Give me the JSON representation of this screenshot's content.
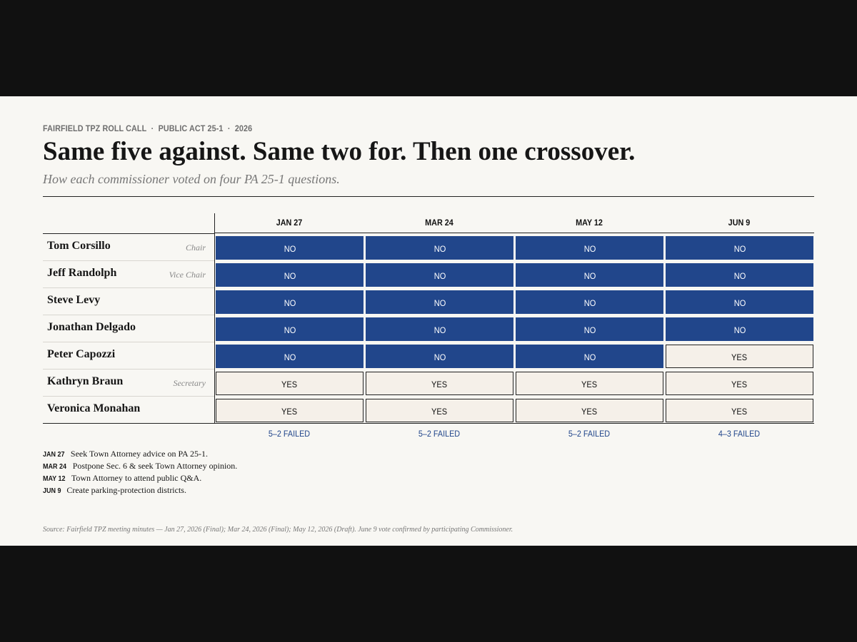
{
  "kicker": [
    "FAIRFIELD TPZ ROLL CALL",
    "PUBLIC ACT 25-1",
    "2026"
  ],
  "kicker_sep": "·",
  "title": "Same five against. Same two for. Then one crossover.",
  "subtitle": "How each commissioner voted on four PA 25-1 questions.",
  "columns": [
    "JAN 27",
    "MAR 24",
    "MAY 12",
    "JUN 9"
  ],
  "rows": [
    {
      "name": "Tom Corsillo",
      "role": "Chair",
      "votes": [
        "NO",
        "NO",
        "NO",
        "NO"
      ]
    },
    {
      "name": "Jeff Randolph",
      "role": "Vice Chair",
      "votes": [
        "NO",
        "NO",
        "NO",
        "NO"
      ]
    },
    {
      "name": "Steve Levy",
      "role": "",
      "votes": [
        "NO",
        "NO",
        "NO",
        "NO"
      ]
    },
    {
      "name": "Jonathan Delgado",
      "role": "",
      "votes": [
        "NO",
        "NO",
        "NO",
        "NO"
      ]
    },
    {
      "name": "Peter Capozzi",
      "role": "",
      "votes": [
        "NO",
        "NO",
        "NO",
        "YES"
      ]
    },
    {
      "name": "Kathryn Braun",
      "role": "Secretary",
      "votes": [
        "YES",
        "YES",
        "YES",
        "YES"
      ]
    },
    {
      "name": "Veronica Monahan",
      "role": "",
      "votes": [
        "YES",
        "YES",
        "YES",
        "YES"
      ]
    }
  ],
  "results": [
    "5–2 FAILED",
    "5–2 FAILED",
    "5–2 FAILED",
    "4–3 FAILED"
  ],
  "notes": [
    {
      "date": "JAN 27",
      "text": "Seek Town Attorney advice on PA 25-1."
    },
    {
      "date": "MAR 24",
      "text": "Postpone Sec. 6 & seek Town Attorney opinion."
    },
    {
      "date": "MAY 12",
      "text": "Town Attorney to attend public Q&A."
    },
    {
      "date": "JUN 9",
      "text": "Create parking-protection districts."
    }
  ],
  "source": "Source: Fairfield TPZ meeting minutes — Jan 27, 2026 (Final); Mar 24, 2026 (Final); May 12, 2026 (Draft). June 9 vote confirmed by participating Commissioner.",
  "colors": {
    "no": "#21468b",
    "yes": "#f5f0e9",
    "panel": "#f8f7f3",
    "frame": "#111111"
  }
}
